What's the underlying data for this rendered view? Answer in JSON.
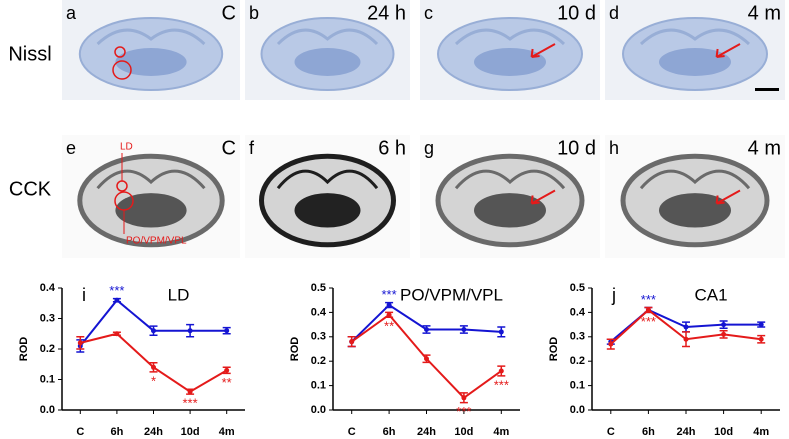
{
  "panels": {
    "rows": [
      "Nissl",
      "CCK"
    ],
    "letters": [
      "a",
      "b",
      "c",
      "d",
      "e",
      "f",
      "g",
      "h"
    ],
    "times": [
      "C",
      "24 h",
      "10 d",
      "4 m",
      "C",
      "6 h",
      "10 d",
      "4 m"
    ],
    "regions": [
      "LD",
      "PO/VPM/VPL"
    ]
  },
  "chart_data": [
    {
      "type": "line",
      "panel": "i",
      "title": "LD",
      "y_label": "ROD",
      "categories": [
        "C",
        "6h",
        "24h",
        "10d",
        "4m"
      ],
      "ylim": [
        0,
        0.4
      ],
      "yticks": [
        {
          "value": 0,
          "label": "0.0"
        },
        0.1,
        0.2,
        0.3,
        0.4
      ],
      "series": [
        {
          "color": "#1414d2",
          "values": [
            0.21,
            0.36,
            0.26,
            0.26,
            0.26
          ],
          "errors": [
            0.02,
            0.005,
            0.015,
            0.02,
            0.01
          ],
          "significance": [
            null,
            "***",
            null,
            null,
            null
          ]
        },
        {
          "color": "#e41a1a",
          "values": [
            0.22,
            0.25,
            0.14,
            0.06,
            0.13
          ],
          "errors": [
            0.02,
            0.005,
            0.015,
            0.008,
            0.01
          ],
          "significance": [
            null,
            null,
            "*",
            "***",
            "**"
          ]
        }
      ]
    },
    {
      "type": "line",
      "title": "PO/VPM/VPL",
      "y_label": "ROD",
      "categories": [
        "C",
        "6h",
        "24h",
        "10d",
        "4m"
      ],
      "ylim": [
        0,
        0.5
      ],
      "yticks": [
        {
          "value": 0,
          "label": "0.0"
        },
        0.1,
        0.2,
        0.3,
        0.4,
        0.5
      ],
      "series": [
        {
          "color": "#1414d2",
          "values": [
            0.28,
            0.43,
            0.33,
            0.33,
            0.32
          ],
          "errors": [
            0.02,
            0.01,
            0.015,
            0.015,
            0.02
          ],
          "significance": [
            null,
            "***",
            null,
            null,
            null
          ]
        },
        {
          "color": "#e41a1a",
          "values": [
            0.28,
            0.39,
            0.21,
            0.05,
            0.16
          ],
          "errors": [
            0.02,
            0.01,
            0.015,
            0.02,
            0.02
          ],
          "significance": [
            null,
            "**",
            null,
            "***",
            "***"
          ]
        }
      ]
    },
    {
      "type": "line",
      "panel": "j",
      "title": "CA1",
      "y_label": "ROD",
      "categories": [
        "C",
        "6h",
        "24h",
        "10d",
        "4m"
      ],
      "ylim": [
        0,
        0.5
      ],
      "yticks": [
        {
          "value": 0,
          "label": "0.0"
        },
        0.1,
        0.2,
        0.3,
        0.4,
        0.5
      ],
      "series": [
        {
          "color": "#1414d2",
          "values": [
            0.28,
            0.41,
            0.34,
            0.35,
            0.35
          ],
          "errors": [
            0.01,
            0.01,
            0.02,
            0.015,
            0.01
          ],
          "significance": [
            null,
            "***",
            null,
            null,
            null
          ]
        },
        {
          "color": "#e41a1a",
          "values": [
            0.27,
            0.41,
            0.29,
            0.31,
            0.29
          ],
          "errors": [
            0.02,
            0.01,
            0.03,
            0.015,
            0.015
          ],
          "significance": [
            null,
            "***",
            null,
            null,
            null
          ]
        }
      ]
    }
  ]
}
